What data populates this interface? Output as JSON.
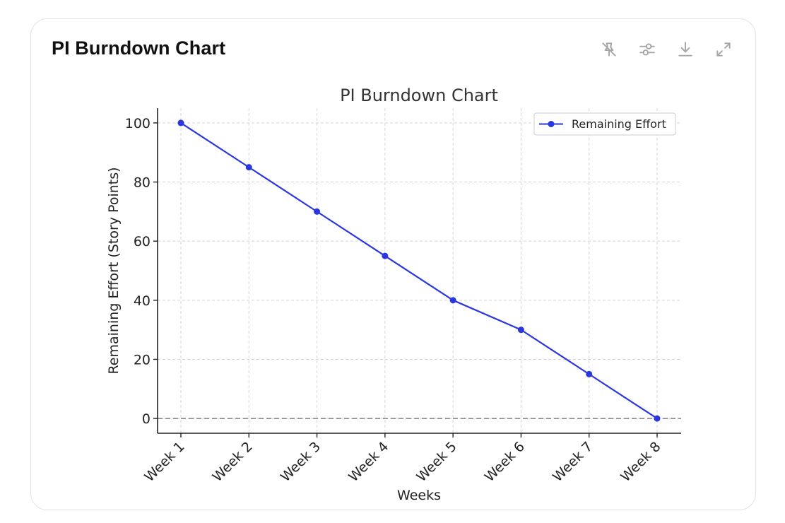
{
  "card": {
    "title": "PI Burndown Chart"
  },
  "toolbar": {
    "icons": [
      "pin-off-icon",
      "sliders-icon",
      "download-icon",
      "expand-icon"
    ]
  },
  "chart_data": {
    "type": "line",
    "title": "PI Burndown Chart",
    "xlabel": "Weeks",
    "ylabel": "Remaining Effort (Story Points)",
    "categories": [
      "Week 1",
      "Week 2",
      "Week 3",
      "Week 4",
      "Week 5",
      "Week 6",
      "Week 7",
      "Week 8"
    ],
    "series": [
      {
        "name": "Remaining Effort",
        "values": [
          100,
          85,
          70,
          55,
          40,
          30,
          15,
          0
        ],
        "color": "#2a36e0",
        "marker": "circle"
      }
    ],
    "ylim": [
      -5,
      105
    ],
    "yticks": [
      0,
      20,
      40,
      60,
      80,
      100
    ],
    "grid": true,
    "reference_line": {
      "y": 0,
      "style": "dashed",
      "color": "#808080"
    },
    "legend_position": "top-right"
  }
}
